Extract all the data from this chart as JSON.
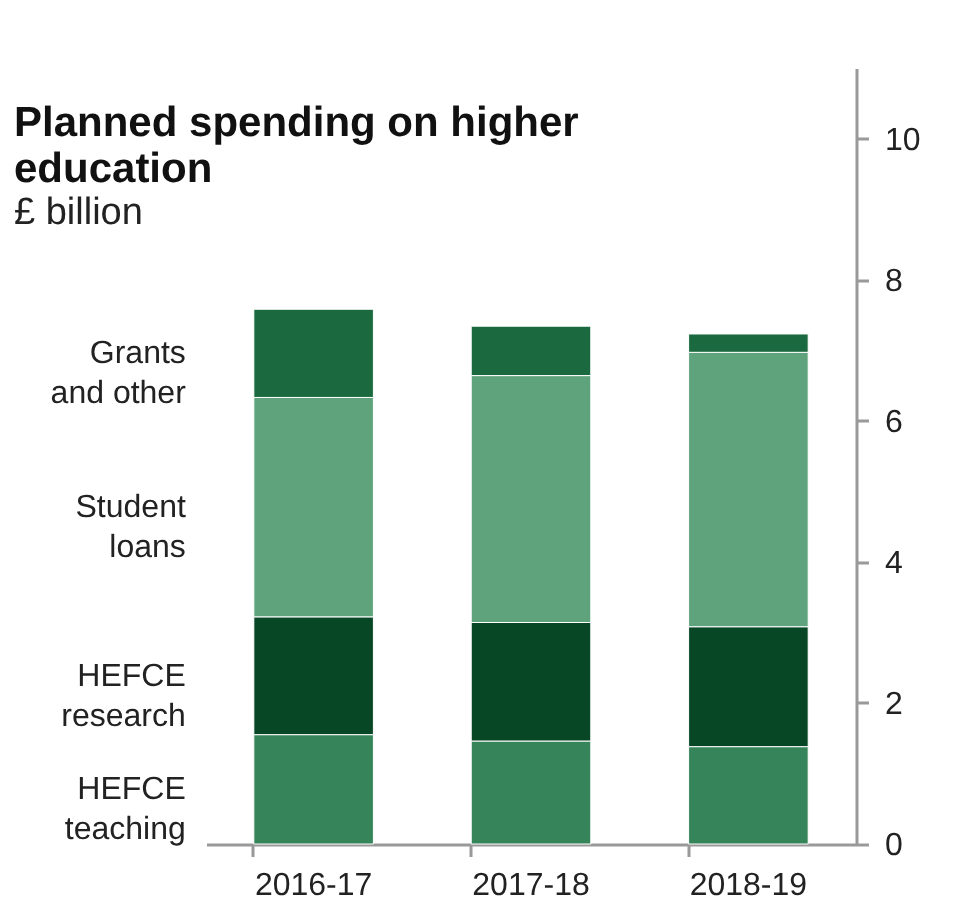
{
  "chart_data": {
    "type": "bar",
    "title": "Planned spending on higher education",
    "subtitle": "£ billion",
    "categories": [
      "2016-17",
      "2017-18",
      "2018-19"
    ],
    "stacked": true,
    "legend": "left",
    "series": [
      {
        "name": "HEFCE teaching",
        "color": "#36845a",
        "values": [
          1.55,
          1.46,
          1.38
        ]
      },
      {
        "name": "HEFCE research",
        "color": "#074726",
        "values": [
          1.67,
          1.68,
          1.7
        ]
      },
      {
        "name": "Student loans",
        "color": "#5ea37c",
        "values": [
          3.11,
          3.5,
          3.89
        ]
      },
      {
        "name": "Grants and other",
        "color": "#1b6a3f",
        "values": [
          1.25,
          0.7,
          0.26
        ]
      }
    ],
    "ylim": [
      0,
      11
    ],
    "yticks": [
      0,
      2,
      4,
      6,
      8,
      10
    ],
    "grid": false
  }
}
